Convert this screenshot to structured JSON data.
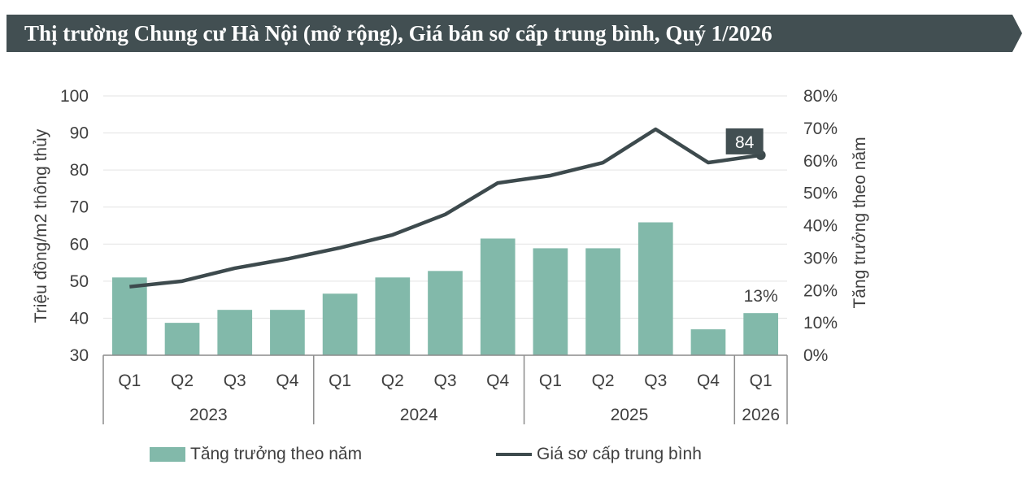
{
  "title": "Thị trường Chung cư Hà Nội (mở rộng), Giá bán sơ cấp trung bình, Quý 1/2026",
  "colors": {
    "banner": "#424f52",
    "bar": "#82b9aa",
    "line": "#3d4a4d",
    "grid": "#e3e3e3",
    "text": "#3f3f3f"
  },
  "chart_data": {
    "type": "bar+line",
    "title": "Thị trường Chung cư Hà Nội (mở rộng), Giá bán sơ cấp trung bình, Quý 1/2026",
    "categories": [
      "Q1",
      "Q2",
      "Q3",
      "Q4",
      "Q1",
      "Q2",
      "Q3",
      "Q4",
      "Q1",
      "Q2",
      "Q3",
      "Q4",
      "Q1"
    ],
    "years": [
      {
        "label": "2023",
        "count": 4
      },
      {
        "label": "2024",
        "count": 4
      },
      {
        "label": "2025",
        "count": 4
      },
      {
        "label": "2026",
        "count": 1
      }
    ],
    "series": [
      {
        "name": "Tăng trưởng theo năm",
        "type": "bar",
        "axis": "right",
        "unit": "%",
        "values": [
          24,
          10,
          14,
          14,
          19,
          24,
          26,
          36,
          33,
          33,
          41,
          8,
          13
        ]
      },
      {
        "name": "Giá sơ cấp trung bình",
        "type": "line",
        "axis": "left",
        "unit": "Triệu đồng/m2",
        "values": [
          48.5,
          50,
          53.5,
          56,
          59,
          62.5,
          68,
          76.5,
          78.5,
          82,
          91,
          82,
          84
        ]
      }
    ],
    "data_labels": [
      {
        "series": "Tăng trưởng theo năm",
        "index": 12,
        "text": "13%"
      },
      {
        "series": "Giá sơ cấp trung bình",
        "index": 12,
        "text": "84"
      }
    ],
    "y_left": {
      "label": "Triệu đồng/m2 thông thủy",
      "min": 30,
      "max": 100,
      "ticks": [
        "30",
        "40",
        "50",
        "60",
        "70",
        "80",
        "90",
        "100"
      ]
    },
    "y_right": {
      "label": "Tăng trưởng theo năm",
      "min": 0,
      "max": 80,
      "ticks": [
        "0%",
        "10%",
        "20%",
        "30%",
        "40%",
        "50%",
        "60%",
        "70%",
        "80%"
      ]
    },
    "grid": true,
    "legend_position": "bottom"
  }
}
